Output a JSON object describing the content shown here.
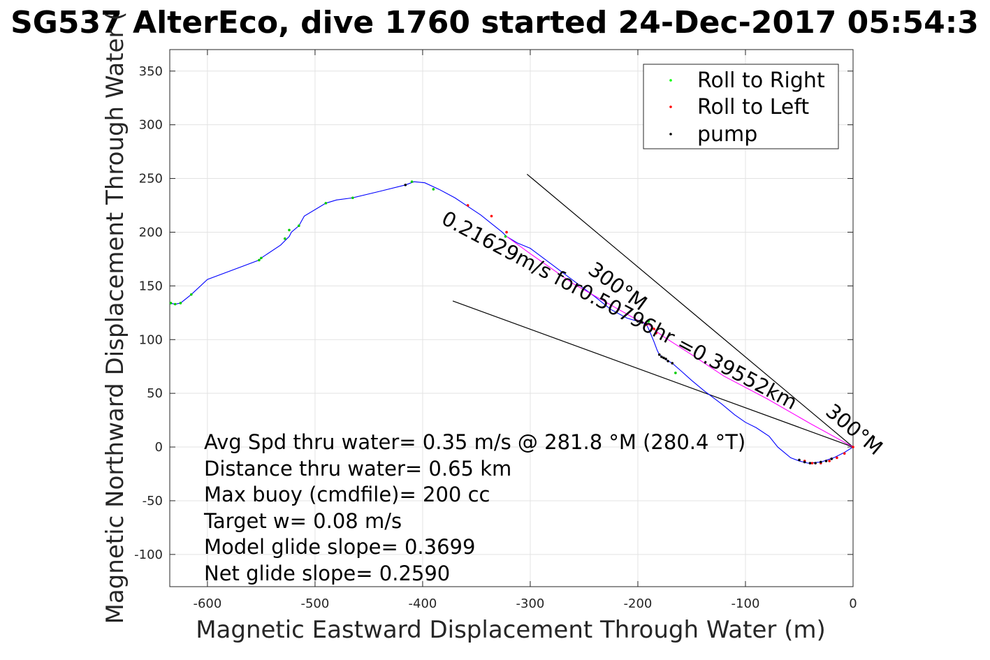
{
  "chart_data": {
    "type": "line",
    "title": "SG537 AlterEco, dive 1760 started 24-Dec-2017 05:54:3",
    "xlabel": "Magnetic Eastward Displacement Through Water (m)",
    "ylabel": "Magnetic Northward Displacement Through Water (",
    "xlim": [
      -635,
      0
    ],
    "ylim": [
      -130,
      370
    ],
    "xticks": [
      -600,
      -500,
      -400,
      -300,
      -200,
      -100,
      0
    ],
    "yticks": [
      -100,
      -50,
      0,
      50,
      100,
      150,
      200,
      250,
      300,
      350
    ],
    "grid": true,
    "legend_position": "top-right",
    "legend": [
      {
        "label": "Roll to Right",
        "color": "#00ff00"
      },
      {
        "label": "Roll to Left",
        "color": "#ff0000"
      },
      {
        "label": "pump",
        "color": "#000000"
      }
    ],
    "series": [
      {
        "color": "#0000ff",
        "x": [
          0,
          -8,
          -18,
          -30,
          -42,
          -50,
          -58,
          -70,
          -78,
          -90,
          -100,
          -110,
          -122,
          -138,
          -150,
          -160,
          -168,
          -175,
          -180,
          -182,
          -185,
          -190,
          -192,
          -196,
          -200,
          -210,
          -225,
          -240,
          -260,
          -280,
          -300,
          -312,
          -322,
          -326,
          -336,
          -346,
          -358,
          -370,
          -385,
          -398,
          -408,
          -416,
          -440,
          -465,
          -480,
          -490,
          -510,
          -515,
          -522,
          -524,
          -528,
          -532,
          -550,
          -552,
          -600,
          -615,
          -625,
          -630,
          -635
        ],
        "y": [
          0,
          -5,
          -10,
          -14,
          -15,
          -13,
          -10,
          0,
          10,
          18,
          23,
          30,
          40,
          52,
          62,
          71,
          78,
          82,
          86,
          90,
          98,
          110,
          114,
          116,
          117,
          120,
          128,
          140,
          155,
          170,
          185,
          190,
          196,
          200,
          208,
          216,
          224,
          232,
          240,
          246,
          247,
          244,
          238,
          232,
          230,
          227,
          215,
          206,
          200,
          196,
          192,
          188,
          176,
          174,
          156,
          142,
          134,
          133,
          134
        ]
      },
      {
        "color": "#ff00ff",
        "x": [
          0,
          -40,
          -80,
          -120,
          -150,
          -175,
          -182,
          -186,
          -192,
          -200,
          -230,
          -260,
          -300,
          -322
        ],
        "y": [
          0,
          22,
          45,
          66,
          86,
          102,
          107,
          111,
          115,
          118,
          135,
          152,
          180,
          196
        ]
      }
    ],
    "points": {
      "roll_right": {
        "x": [
          -165,
          -190,
          -323,
          -390,
          -410,
          -465,
          -490,
          -515,
          -524,
          -528,
          -550,
          -552,
          -615,
          -625,
          -630,
          -634
        ],
        "y": [
          69,
          117,
          196,
          240,
          247,
          232,
          227,
          206,
          202,
          194,
          176,
          174,
          142,
          134,
          133,
          134
        ]
      },
      "roll_left": {
        "x": [
          -322,
          -336,
          -358,
          -185,
          -183,
          -192,
          -45,
          -38,
          -30,
          -22,
          -15,
          -8,
          0
        ],
        "y": [
          200,
          215,
          225,
          110,
          106,
          114,
          -13,
          -15,
          -15,
          -13,
          -10,
          -6,
          0
        ]
      },
      "pump": {
        "x": [
          -416,
          -180,
          -178,
          -176,
          -174,
          -172,
          -168,
          -196,
          -200,
          -50,
          -45,
          -40,
          -35,
          -30,
          -25,
          -20
        ],
        "y": [
          244,
          86,
          84,
          83,
          82,
          80,
          78,
          116,
          117,
          -12,
          -14,
          -15,
          -15,
          -14,
          -13,
          -11
        ]
      }
    },
    "heading_lines": [
      {
        "from": [
          0,
          0
        ],
        "to": [
          -303,
          254
        ]
      },
      {
        "from": [
          0,
          0
        ],
        "to": [
          -372,
          136
        ]
      }
    ],
    "rotated_annotations": [
      {
        "text": "300°M",
        "anchor": [
          -290,
          160
        ]
      },
      {
        "text": "0.21629m/s for0.50796hr =0.39552km",
        "anchor": [
          -385,
          200
        ]
      },
      {
        "text": "300°M",
        "anchor": [
          -100,
          60
        ]
      }
    ],
    "annotations": [
      "Avg Spd thru water=  0.35 m/s @ 281.8 °M (280.4  °T)",
      "Distance thru water=  0.65 km",
      "Max buoy (cmdfile)= 200 cc",
      "Target w= 0.08 m/s",
      "Model glide slope= 0.3699",
      "Net glide slope= 0.2590"
    ]
  }
}
